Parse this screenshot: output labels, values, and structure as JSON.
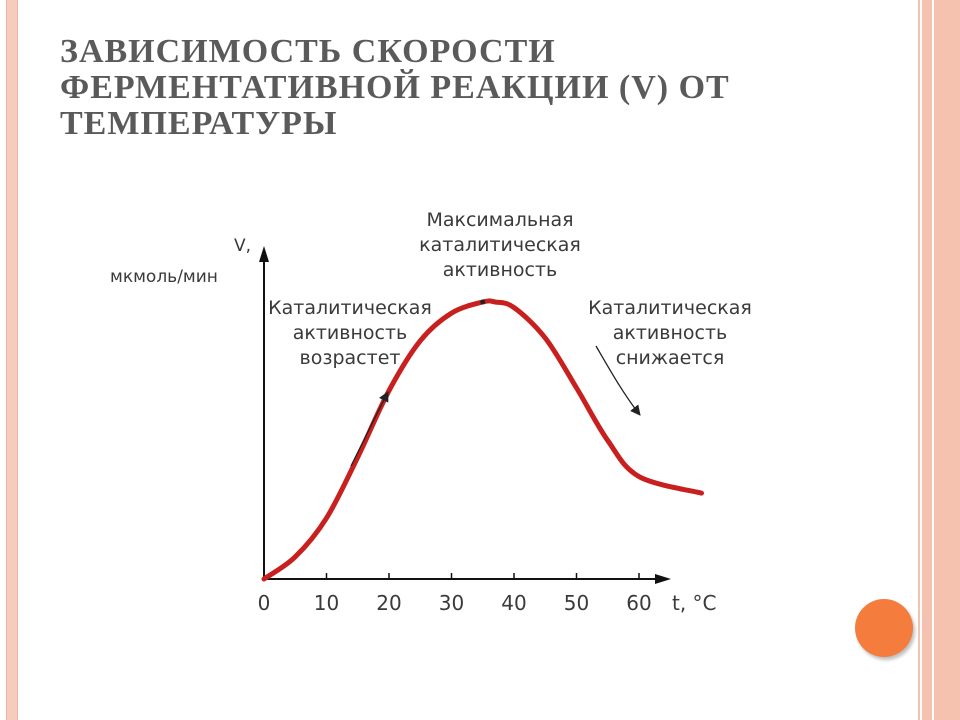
{
  "slide": {
    "title_lines": [
      "ЗАВИСИМОСТЬ СКОРОСТИ",
      "ФЕРМЕНТАТИВНОЙ РЕАКЦИИ (V) ОТ",
      "ТЕМПЕРАТУРЫ"
    ]
  },
  "colors": {
    "curve": "#c8201f",
    "accent_dot": "#f47c3c",
    "border": "#f4c2af"
  },
  "chart_data": {
    "type": "line",
    "title": "",
    "ylabel_lines": [
      "V,",
      "мкмоль/мин"
    ],
    "xlabel": "t, °C",
    "x_ticks": [
      "0",
      "10",
      "20",
      "30",
      "40",
      "50",
      "60"
    ],
    "xlim": [
      0,
      66
    ],
    "ylim": [
      0,
      100
    ],
    "series": [
      {
        "x": [
          0,
          5,
          10,
          15,
          20,
          25,
          30,
          35,
          37,
          40,
          45,
          50,
          55,
          60,
          70
        ],
        "y": [
          0,
          8,
          22,
          44,
          68,
          86,
          96,
          100,
          100,
          98,
          87,
          69,
          50,
          37,
          31
        ]
      }
    ],
    "annotations": {
      "peak": [
        "Максимальная",
        "каталитическая",
        "активность"
      ],
      "rise": [
        "Каталитическая",
        "активность",
        "возрастет"
      ],
      "fall": [
        "Каталитическая",
        "активность",
        "снижается"
      ]
    }
  }
}
